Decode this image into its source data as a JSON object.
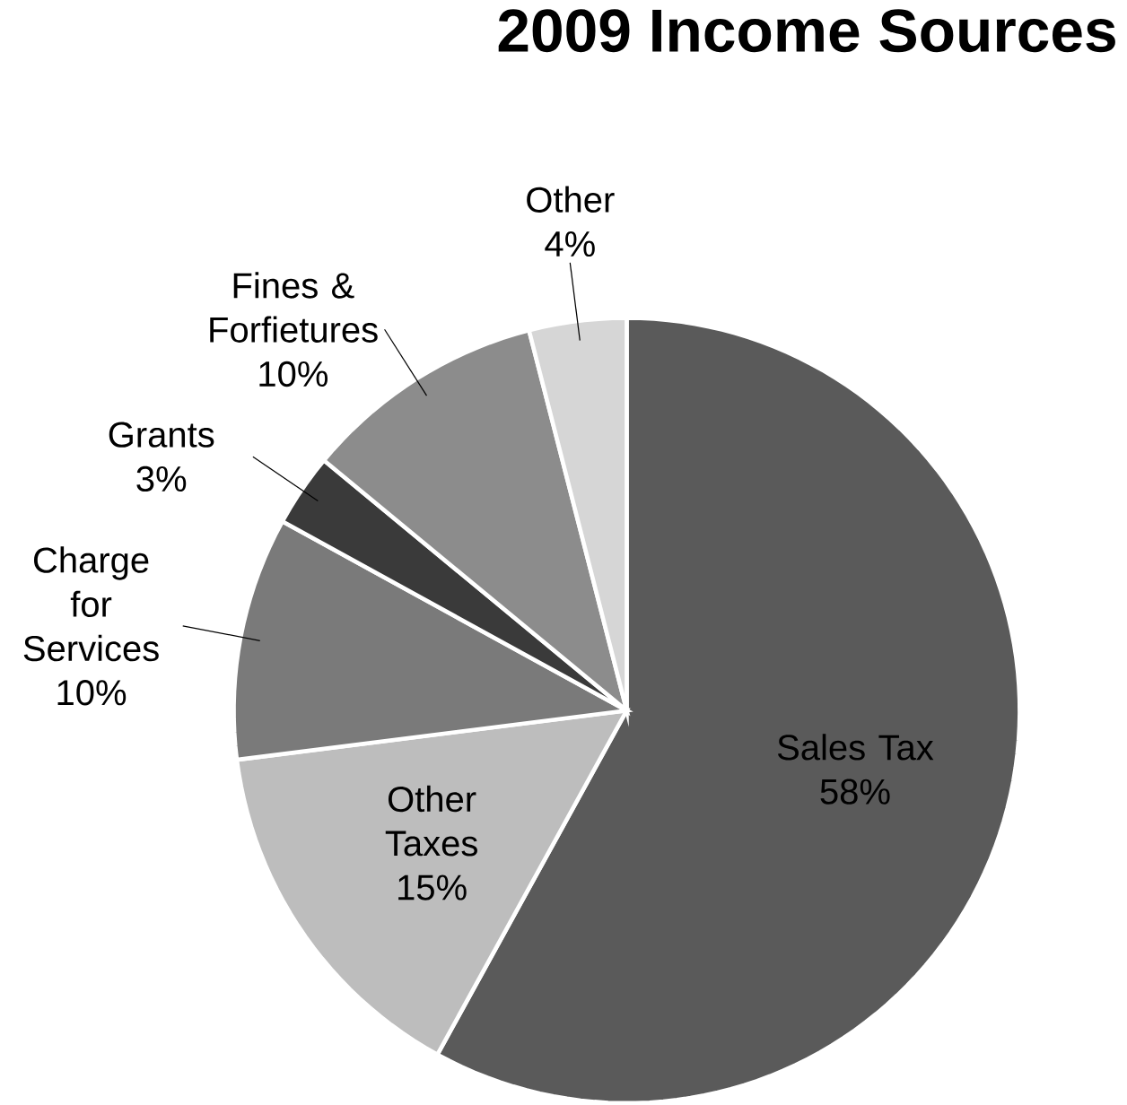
{
  "chart_data": {
    "type": "pie",
    "title": "2009 Income Sources",
    "categories": [
      "Sales Tax",
      "Other Taxes",
      "Charge for Services",
      "Grants",
      "Fines & Forfietures",
      "Other"
    ],
    "values": [
      58,
      15,
      10,
      3,
      10,
      4
    ],
    "value_labels": [
      "58%",
      "15%",
      "10%",
      "3%",
      "10%",
      "4%"
    ],
    "colors": [
      "#5a5a5a",
      "#bdbdbd",
      "#7a7a7a",
      "#3a3a3a",
      "#8c8c8c",
      "#d6d6d6"
    ]
  }
}
